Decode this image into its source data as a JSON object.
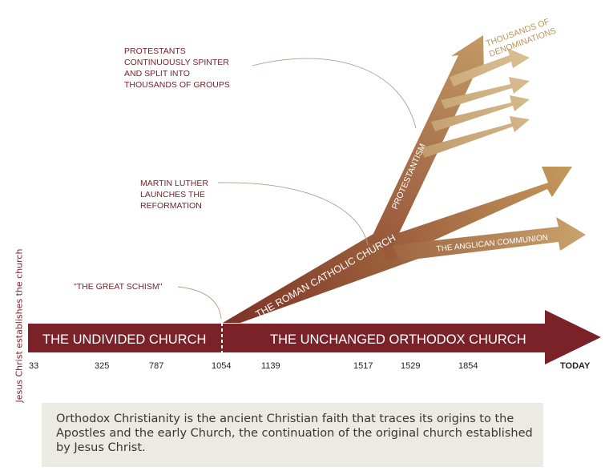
{
  "side_label": "Jesus Christ establishes the church",
  "timeline": {
    "undivided": "THE UNDIVIDED CHURCH",
    "orthodox": "THE UNCHANGED ORTHODOX CHURCH",
    "years": [
      "33",
      "325",
      "787",
      "1054",
      "1139",
      "1517",
      "1529",
      "1854",
      "TODAY"
    ]
  },
  "branches": {
    "roman": "THE ROMAN CATHOLIC CHURCH",
    "protestantism": "PROTESTANTISM",
    "anglican": "THE ANGLICAN COMMUNION",
    "denominations": [
      "THOUSANDS OF",
      "DENOMINATIONS"
    ]
  },
  "annotations": {
    "schism": "\"THE GREAT SCHISM\"",
    "luther": [
      "MARTIN LUTHER",
      "LAUNCHES THE",
      "REFORMATION"
    ],
    "protestants": [
      "PROTESTANTS",
      "CONTINUOUSLY SPINTER",
      "AND SPLIT INTO",
      "THOUSANDS OF GROUPS"
    ]
  },
  "caption": "Orthodox Christianity is the ancient Christian faith that traces its origins to the Apostles and the early Church, the continuation of the original church established by Jesus Christ.",
  "colors": {
    "orthodox": "#7a2228",
    "catholic_dark": "#8a3a2a",
    "catholic_light": "#b9894f",
    "tan": "#cfae7c",
    "annotation_text": "#7a2228"
  }
}
